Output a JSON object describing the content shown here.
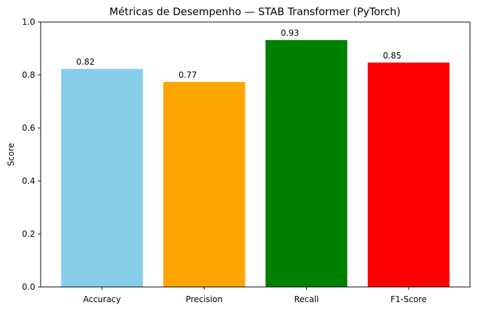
{
  "chart_data": {
    "type": "bar",
    "title": "Métricas de Desempenho — STAB Transformer (PyTorch)",
    "xlabel": "",
    "ylabel": "Score",
    "ylim": [
      0,
      1.0
    ],
    "yticks": [
      "0.0",
      "0.2",
      "0.4",
      "0.6",
      "0.8",
      "1.0"
    ],
    "grid": false,
    "categories": [
      "Accuracy",
      "Precision",
      "Recall",
      "F1-Score"
    ],
    "values": [
      0.823,
      0.774,
      0.932,
      0.847
    ],
    "value_labels": [
      "0.82",
      "0.77",
      "0.93",
      "0.85"
    ],
    "colors": [
      "#87ceeb",
      "#ffa500",
      "#008000",
      "#ff0000"
    ]
  }
}
